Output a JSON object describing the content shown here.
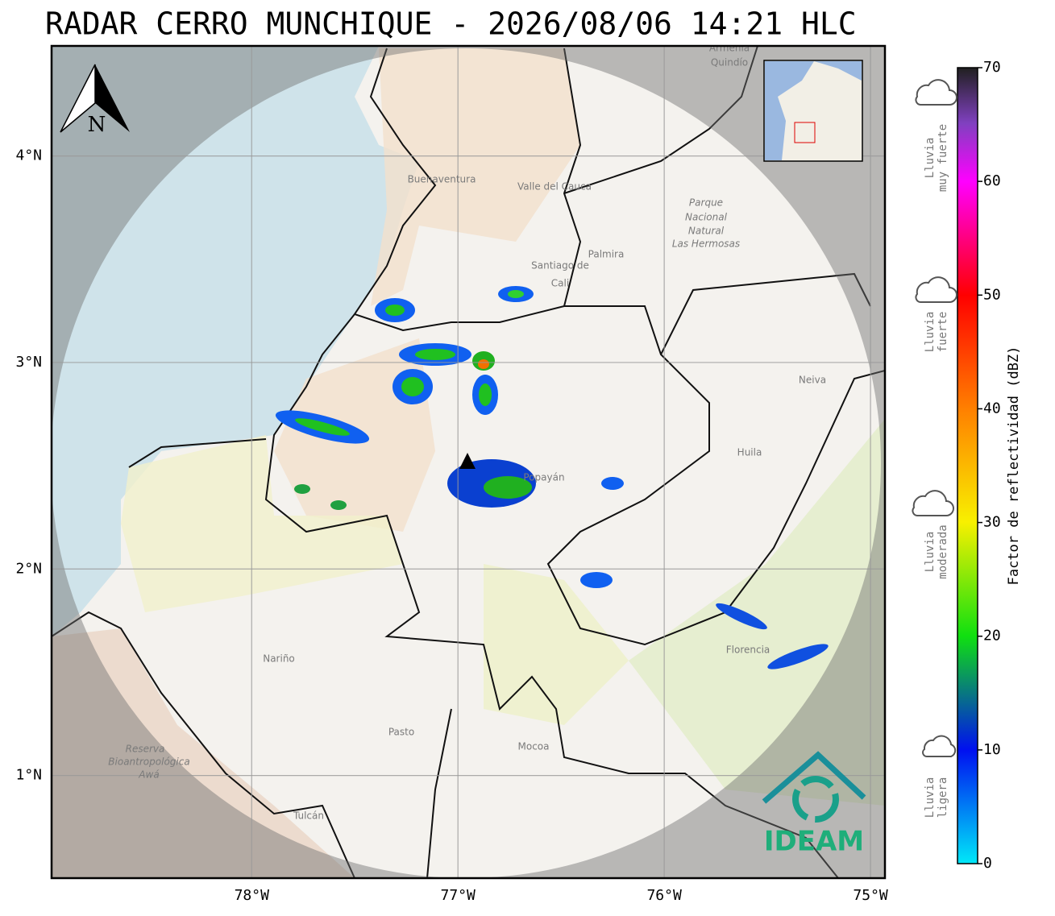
{
  "title": "RADAR CERRO MUNCHIQUE - 2026/08/06 14:21 HLC",
  "map": {
    "xlim": [
      -78.97,
      -74.93
    ],
    "ylim": [
      0.503,
      4.533
    ],
    "xticks": [
      {
        "value": -78,
        "label": "78°W"
      },
      {
        "value": -77,
        "label": "77°W"
      },
      {
        "value": -76,
        "label": "76°W"
      },
      {
        "value": -75,
        "label": "75°W"
      }
    ],
    "yticks": [
      {
        "value": 1,
        "label": "1°N"
      },
      {
        "value": 2,
        "label": "2°N"
      },
      {
        "value": 3,
        "label": "3°N"
      },
      {
        "value": 4,
        "label": "4°N"
      }
    ],
    "north_label": "N",
    "places": [
      "Buenaventura",
      "Valle del Cauca",
      "Palmira",
      "Santiago de",
      "Cali",
      "Parque",
      "Nacional",
      "Natural",
      "Las Hermosas",
      "Neiva",
      "Huila",
      "Popayán",
      "Nariño",
      "Florencia",
      "Pasto",
      "Mocoa",
      "Reserva",
      "Bioantropológica",
      "Awá",
      "Tulcán",
      "Armenia",
      "Quindío"
    ],
    "logo": "IDEAM"
  },
  "colorbar": {
    "label": "Factor de reflectividad (dBZ)",
    "lim": [
      0,
      70
    ],
    "ticks": [
      0,
      10,
      20,
      30,
      40,
      50,
      60,
      70
    ]
  },
  "rain_classes": [
    [
      "Lluvia",
      "muy fuerte"
    ],
    [
      "Lluvia",
      "fuerte"
    ],
    [
      "Lluvia",
      "moderada"
    ],
    [
      "Lluvia",
      "ligera"
    ]
  ]
}
